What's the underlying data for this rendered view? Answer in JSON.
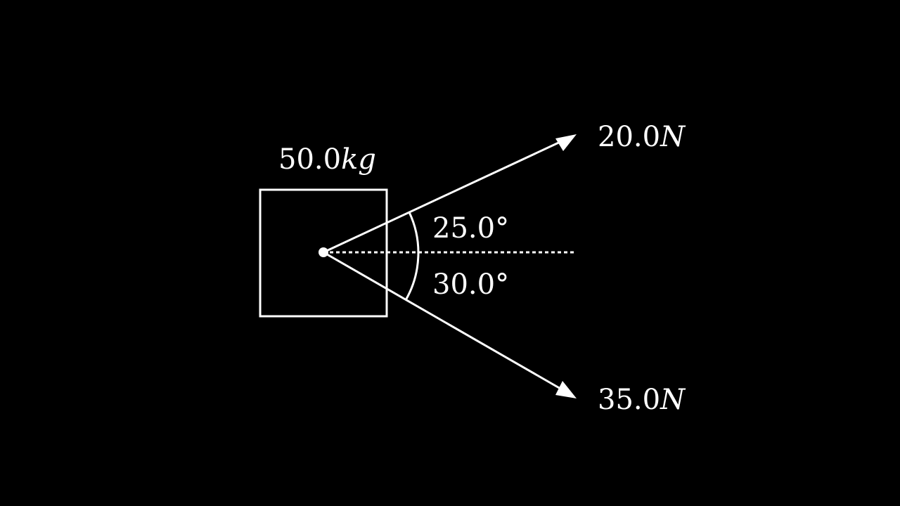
{
  "mass": {
    "value": "50.0",
    "unit": "kg"
  },
  "forces": [
    {
      "value": "20.0",
      "unit": "N",
      "angle_deg": 25.0,
      "direction": "above"
    },
    {
      "value": "35.0",
      "unit": "N",
      "angle_deg": 30.0,
      "direction": "below"
    }
  ],
  "angles": [
    {
      "label": "25.0°"
    },
    {
      "label": "30.0°"
    }
  ],
  "colors": {
    "background": "#000000",
    "foreground": "#ffffff"
  }
}
